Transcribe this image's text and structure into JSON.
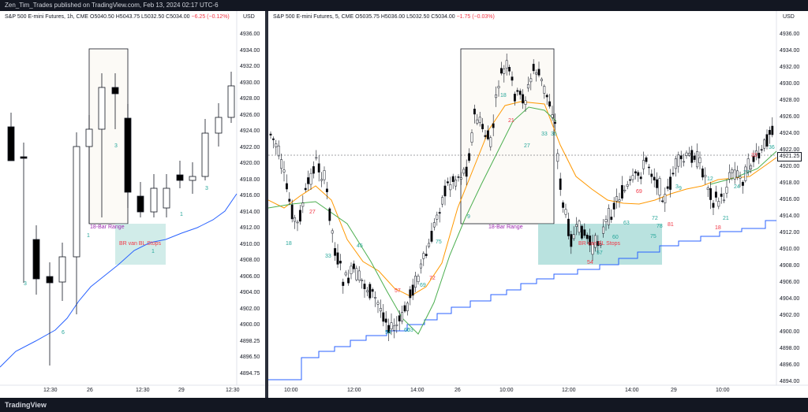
{
  "header": {
    "text": "Zen_Tim_Trades published on TradingView.com, Feb 13, 2024 02:17 UTC-6"
  },
  "footer": {
    "brand": "TradingView"
  },
  "left": {
    "title": "S&P 500 E-mini Futures, 1h, CME",
    "ohlc": "O5040.50  H5043.75  L5032.50  C5034.00",
    "change": "−6.25 (−0.12%)",
    "currency": "USD",
    "y_labels": [
      "4936.00",
      "4934.00",
      "4932.00",
      "4930.00",
      "4928.00",
      "4926.00",
      "4924.00",
      "4922.00",
      "4920.00",
      "4918.00",
      "4916.00",
      "4914.00",
      "4912.00",
      "4910.00",
      "4908.00",
      "4906.00",
      "4904.00",
      "4902.00",
      "4900.00",
      "4898.25",
      "4896.50",
      "4894.75"
    ],
    "x_labels": [
      "12:30",
      "26",
      "12:30",
      "29",
      "12:30"
    ],
    "range_label": "18-Bar Range",
    "stops_label": "BR van BL Stops",
    "bar_numbers": [
      "3",
      "3",
      "1",
      "6",
      "1",
      "3",
      "1"
    ]
  },
  "right": {
    "title": "S&P 500 E-mini Futures, 5, CME",
    "ohlc": "O5035.75  H5036.00  L5032.50  C5034.00",
    "change": "−1.75 (−0.03%)",
    "currency": "USD",
    "y_labels": [
      "4936.00",
      "4934.00",
      "4932.00",
      "4930.00",
      "4928.00",
      "4926.00",
      "4924.00",
      "4922.00",
      "4920.00",
      "4918.00",
      "4916.00",
      "4914.00",
      "4912.00",
      "4910.00",
      "4908.00",
      "4906.00",
      "4904.00",
      "4902.00",
      "4900.00",
      "4898.00",
      "4896.00",
      "4894.00"
    ],
    "last_price": "4921.25",
    "x_labels": [
      "10:00",
      "12:00",
      "14:00",
      "26",
      "10:00",
      "12:00",
      "14:00",
      "29",
      "10:00"
    ],
    "range_label": "18-Bar Range",
    "stops_label": "BR van BL Stops",
    "bar_numbers": [
      "18",
      "27",
      "33",
      "45",
      "54",
      "57",
      "60",
      "63",
      "69",
      "72",
      "75",
      "9",
      "18",
      "21",
      "27",
      "33",
      "36",
      "54",
      "57",
      "60",
      "63",
      "69",
      "72",
      "75",
      "78",
      "81",
      "3",
      "9",
      "12",
      "18",
      "21",
      "24",
      "27",
      "33",
      "36"
    ]
  }
}
